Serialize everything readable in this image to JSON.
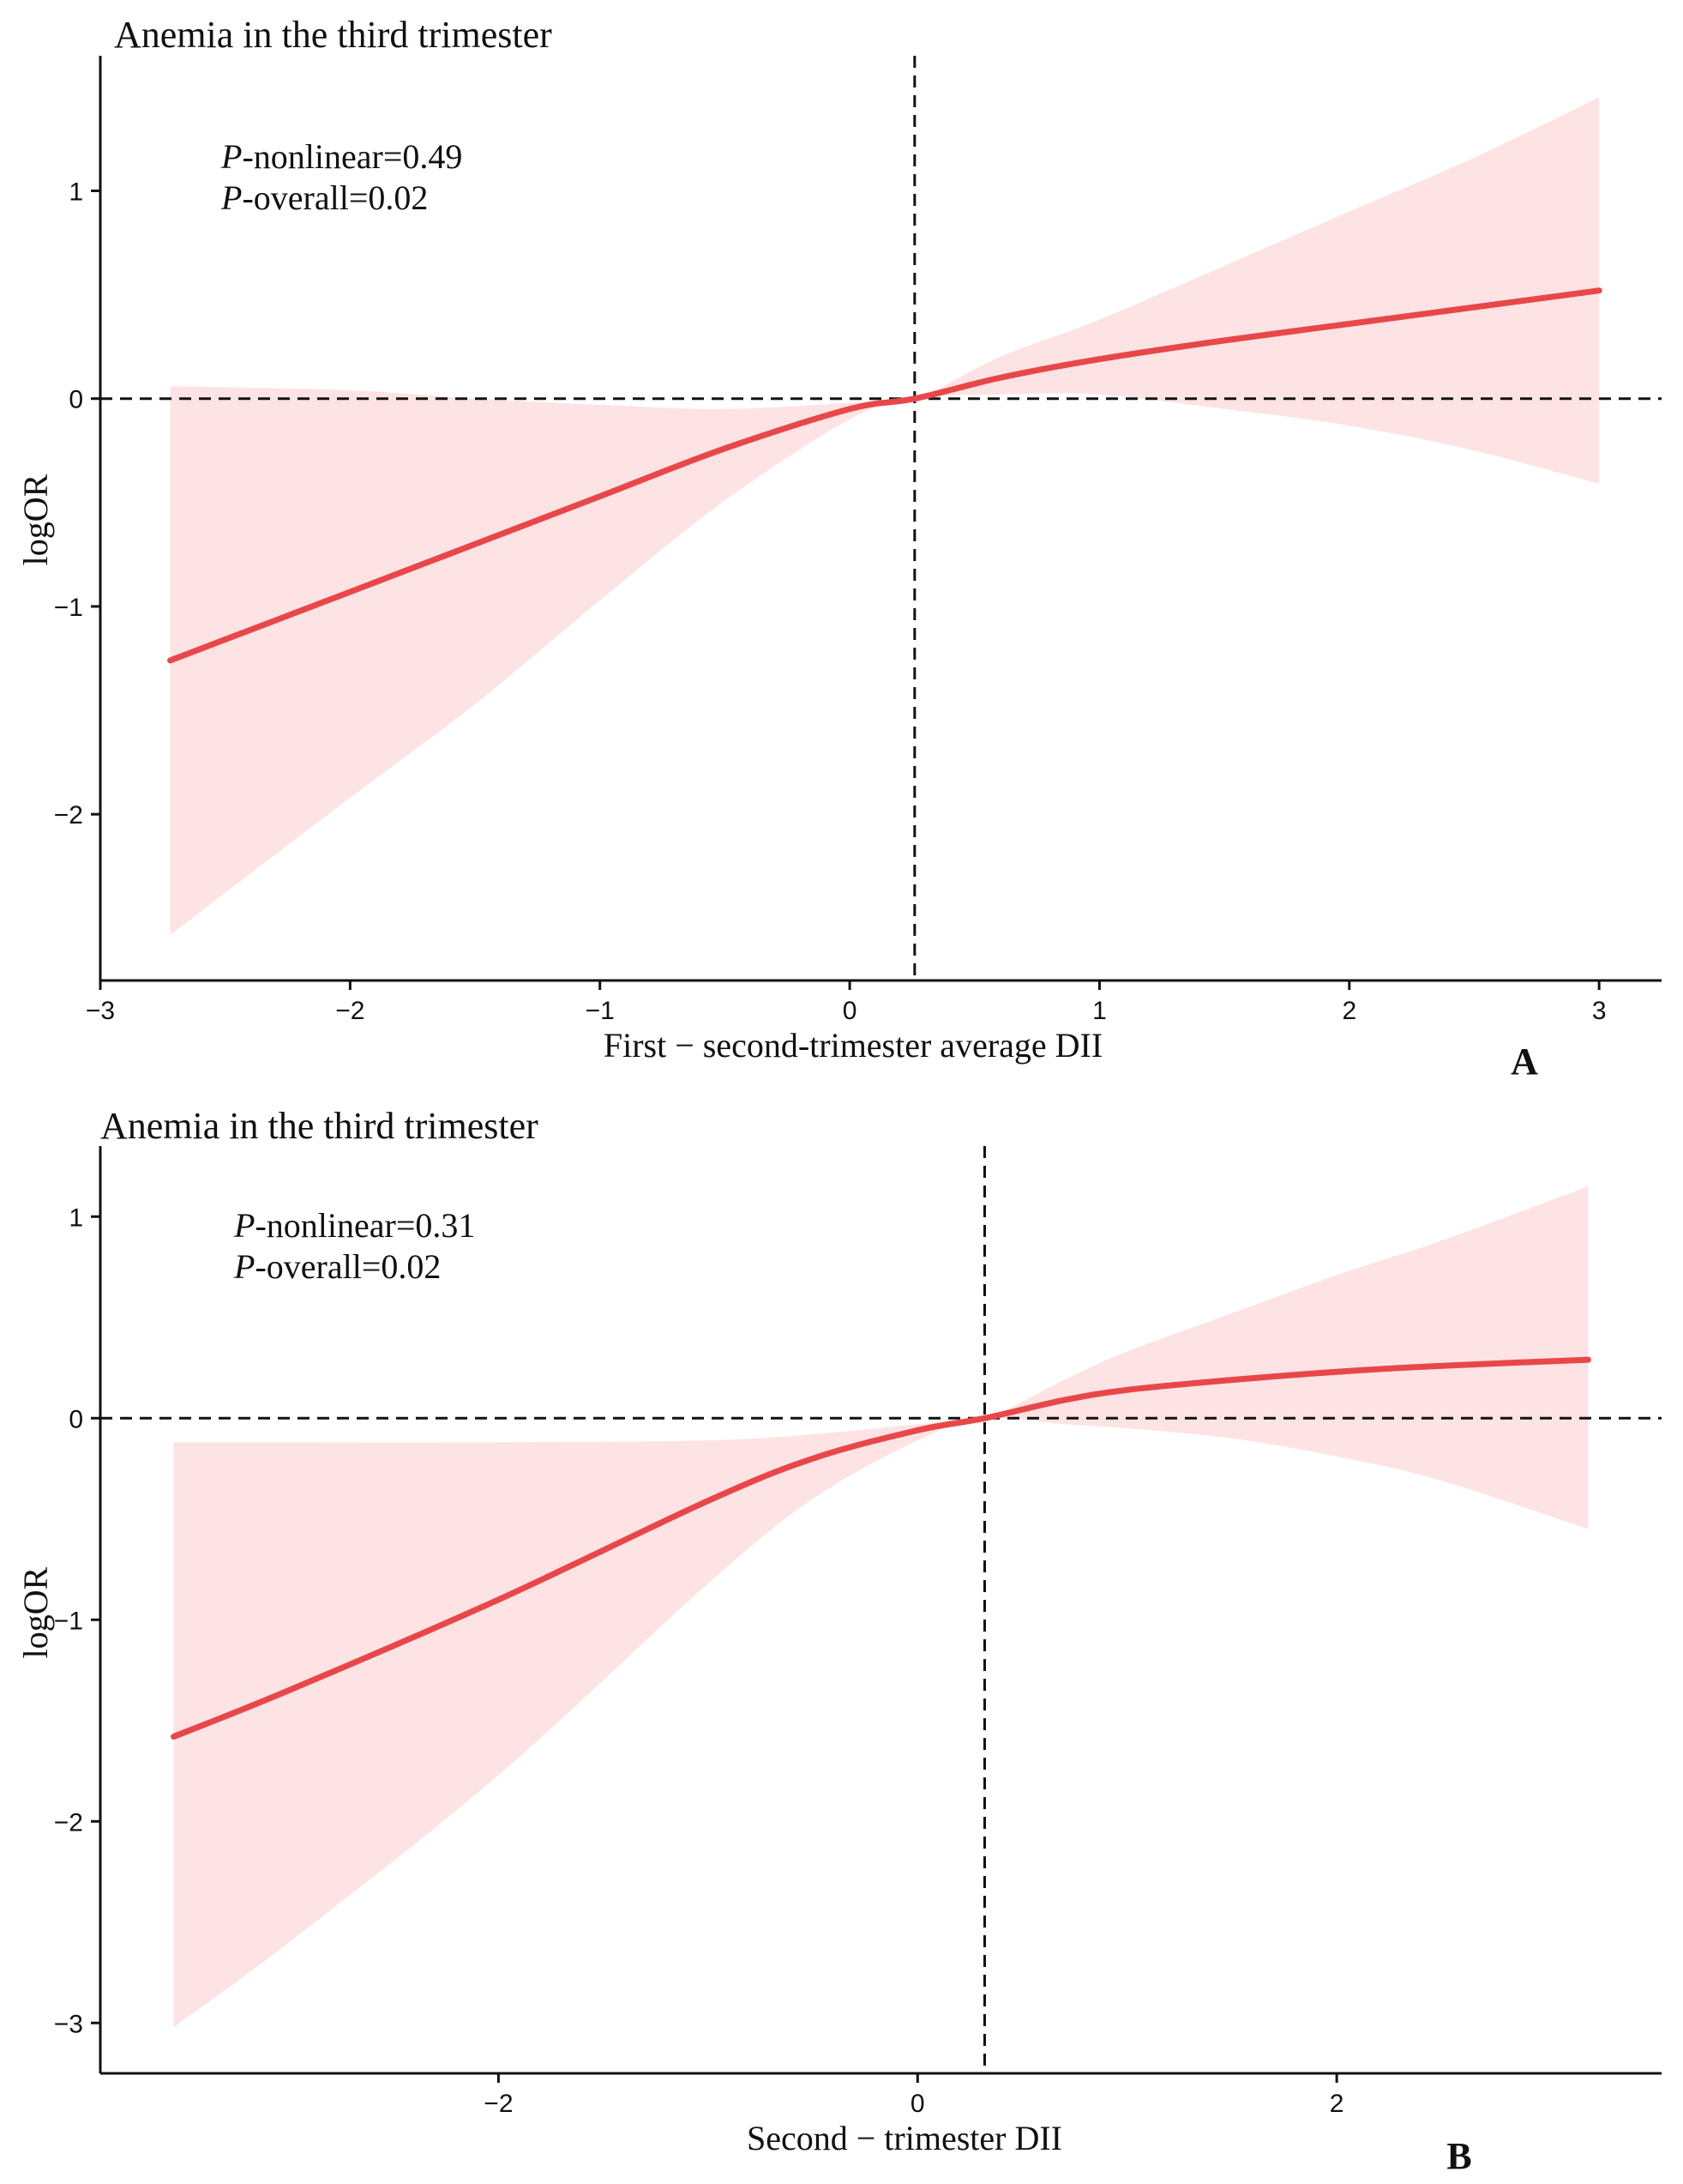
{
  "chart_data": [
    {
      "type": "line",
      "panel_label": "A",
      "title": "Anemia in the third trimester",
      "xlabel": "First − second-trimester average DII",
      "ylabel": "logOR",
      "xlim": [
        -3,
        3.25
      ],
      "ylim": [
        -2.8,
        1.65
      ],
      "x_ticks": [
        -3,
        -2,
        -1,
        0,
        1,
        2,
        3
      ],
      "x_tick_labels": [
        "−3",
        "−2",
        "−1",
        "0",
        "1",
        "2",
        "3"
      ],
      "y_ticks": [
        -2,
        -1,
        0,
        1
      ],
      "y_tick_labels": [
        "−2",
        "−1",
        "0",
        "1"
      ],
      "annotations": [
        {
          "italic": "P",
          "rest": "-nonlinear=0.49"
        },
        {
          "italic": "P",
          "rest": "-overall=0.02"
        }
      ],
      "reference_lines": {
        "x": 0.26,
        "y": 0
      },
      "series": [
        {
          "name": "logOR",
          "color": "#e8474a",
          "x": [
            -2.72,
            -2.0,
            -1.5,
            -1.0,
            -0.5,
            0.0,
            0.26,
            0.6,
            1.0,
            1.5,
            2.0,
            2.5,
            3.0
          ],
          "y": [
            -1.26,
            -0.93,
            -0.7,
            -0.47,
            -0.24,
            -0.05,
            0.0,
            0.1,
            0.19,
            0.28,
            0.36,
            0.44,
            0.52
          ],
          "lower": [
            -2.58,
            -1.92,
            -1.47,
            -0.97,
            -0.49,
            -0.1,
            0.0,
            0.02,
            0.02,
            -0.05,
            -0.13,
            -0.25,
            -0.41
          ],
          "upper": [
            0.06,
            0.04,
            0.0,
            -0.03,
            -0.05,
            -0.02,
            0.0,
            0.2,
            0.38,
            0.64,
            0.9,
            1.16,
            1.45
          ]
        }
      ]
    },
    {
      "type": "line",
      "panel_label": "B",
      "title": "Anemia in the third trimester",
      "xlabel": "Second − trimester DII",
      "ylabel": "logOR",
      "xlim": [
        -3.9,
        3.55
      ],
      "ylim": [
        -3.25,
        1.35
      ],
      "x_ticks": [
        -2,
        0,
        2
      ],
      "x_tick_labels": [
        "−2",
        "0",
        "2"
      ],
      "y_ticks": [
        -3,
        -2,
        -1,
        0,
        1
      ],
      "y_tick_labels": [
        "−3",
        "−2",
        "−1",
        "0",
        "1"
      ],
      "annotations": [
        {
          "italic": "P",
          "rest": "-nonlinear=0.31"
        },
        {
          "italic": "P",
          "rest": "-overall=0.02"
        }
      ],
      "reference_lines": {
        "x": 0.32,
        "y": 0
      },
      "series": [
        {
          "name": "logOR",
          "color": "#e8474a",
          "x": [
            -3.55,
            -3.0,
            -2.0,
            -1.0,
            -0.5,
            0.0,
            0.32,
            0.7,
            1.0,
            1.5,
            2.0,
            2.5,
            3.2
          ],
          "y": [
            -1.58,
            -1.35,
            -0.9,
            -0.41,
            -0.2,
            -0.06,
            0.0,
            0.09,
            0.14,
            0.19,
            0.23,
            0.26,
            0.29
          ],
          "lower": [
            -3.02,
            -2.6,
            -1.77,
            -0.82,
            -0.4,
            -0.11,
            0.0,
            -0.03,
            -0.05,
            -0.1,
            -0.19,
            -0.31,
            -0.55
          ],
          "upper": [
            -0.12,
            -0.12,
            -0.12,
            -0.11,
            -0.08,
            -0.03,
            0.0,
            0.19,
            0.33,
            0.52,
            0.71,
            0.88,
            1.15
          ]
        }
      ]
    }
  ],
  "colors": {
    "line": "#e8474a",
    "band": "#fde3e3",
    "axis": "#111111"
  }
}
